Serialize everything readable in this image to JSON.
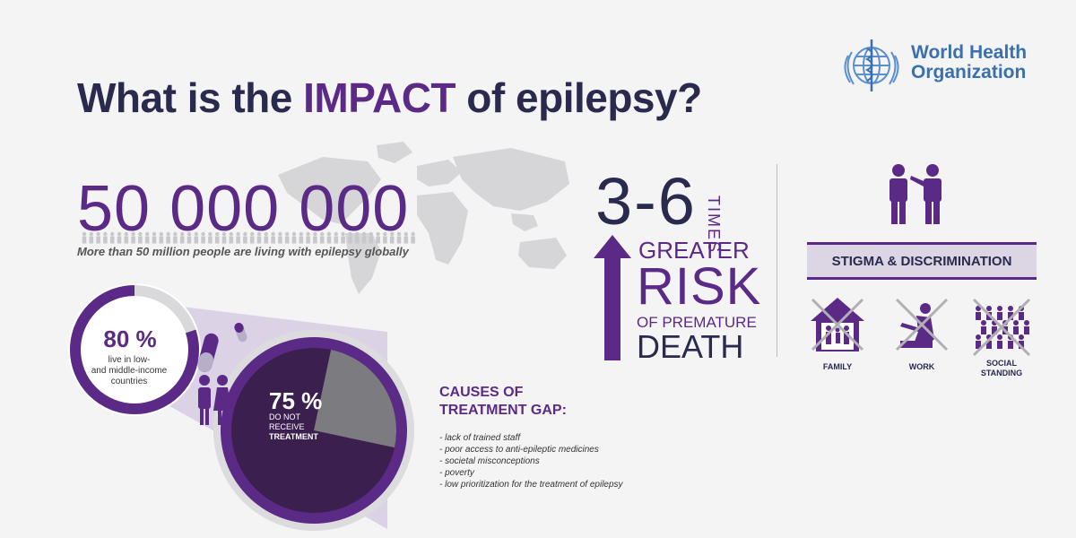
{
  "title": {
    "before": "What is the ",
    "highlight": "IMPACT",
    "after": " of epilepsy?"
  },
  "logo": {
    "line1": "World Health",
    "line2": "Organization",
    "emblem_icon": "who-emblem-icon"
  },
  "global": {
    "number": "50 000 000",
    "caption": "More than 50 million people are living with epilepsy globally"
  },
  "low_income": {
    "percent": "80 %",
    "text_line1": "live in low-",
    "text_line2": "and middle-income",
    "text_line3": "countries"
  },
  "treatment": {
    "percent": "75 %",
    "text_line1": "DO NOT RECEIVE",
    "text_line2": "TREATMENT"
  },
  "causes": {
    "title_line1": "CAUSES OF",
    "title_line2": "TREATMENT GAP:",
    "items": [
      "- lack of trained staff",
      "- poor access to anti-epileptic medicines",
      "- societal misconceptions",
      "- poverty",
      "- low prioritization for the treatment of epilepsy"
    ]
  },
  "risk": {
    "range": "3-6",
    "times": "TIMES",
    "greater": "GREATER",
    "risk": "RISK",
    "of_premature": "OF PREMATURE",
    "death": "DEATH"
  },
  "stigma": {
    "heading": "STIGMA & DISCRIMINATION",
    "family": "FAMILY",
    "work": "WORK",
    "social_line1": "SOCIAL",
    "social_line2": "STANDING"
  },
  "colors": {
    "purple": "#5b2a86",
    "navy": "#2a2a4e",
    "grey": "#777777",
    "light_purple": "#dcd6e4",
    "background": "#f4f4f5"
  }
}
